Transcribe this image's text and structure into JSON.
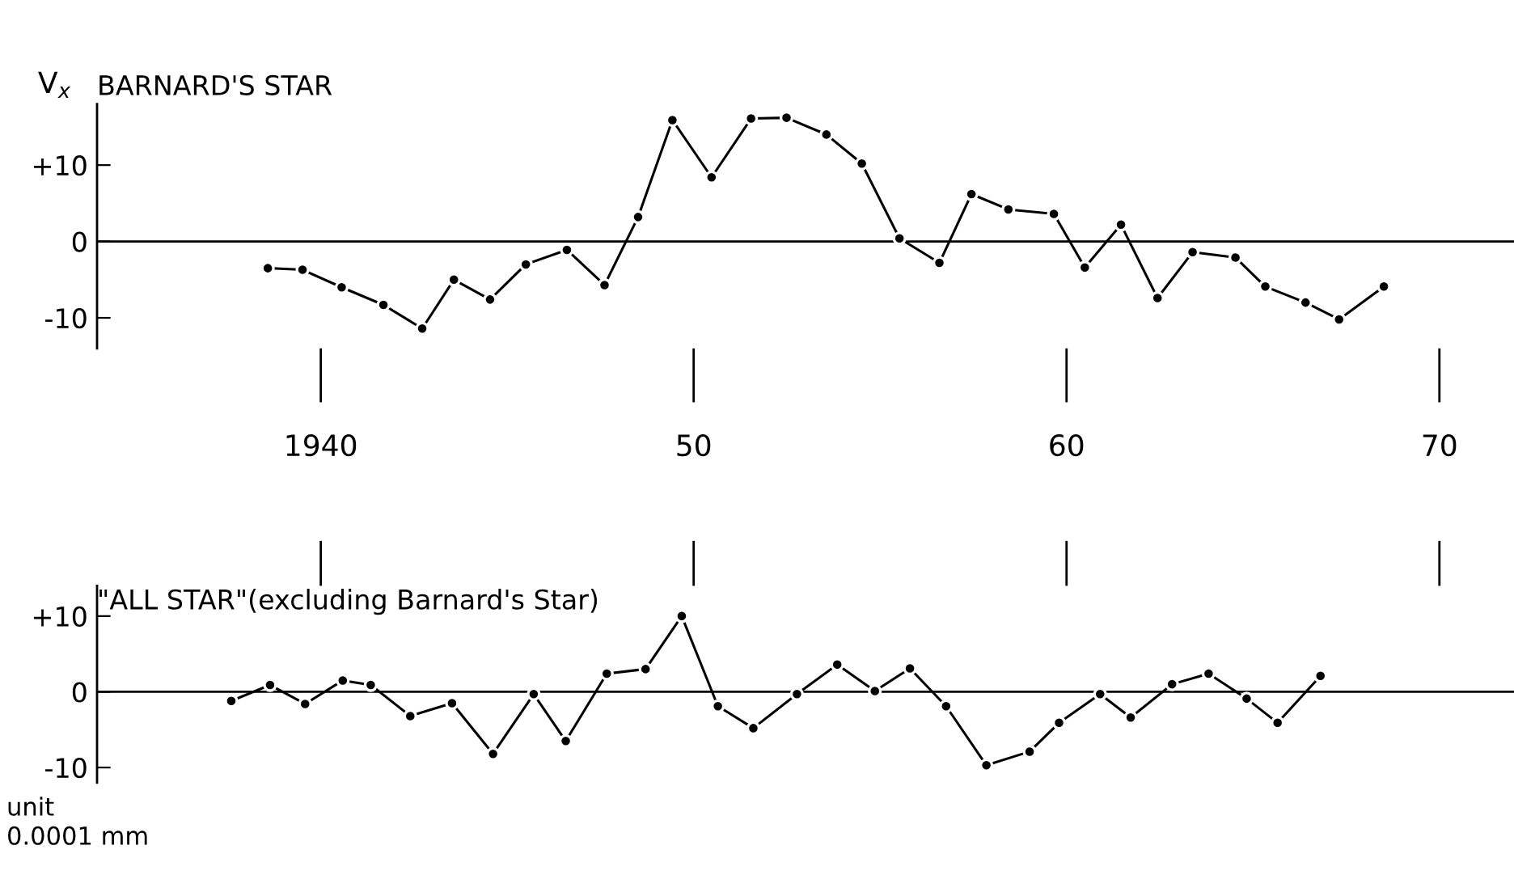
{
  "chart_data": [
    {
      "type": "line",
      "title": "BARNARD'S STAR",
      "ylabel": "V$_{x}$",
      "marker": "circle",
      "line_style": "solid",
      "grid": false,
      "legend": false,
      "x": [
        1938.58,
        1939.51,
        1940.56,
        1941.68,
        1942.72,
        1943.57,
        1944.54,
        1945.5,
        1946.6,
        1947.61,
        1948.51,
        1949.43,
        1950.48,
        1951.54,
        1952.49,
        1953.56,
        1954.51,
        1955.52,
        1956.59,
        1957.45,
        1958.44,
        1959.66,
        1960.49,
        1961.46,
        1962.44,
        1963.38,
        1964.53,
        1965.33,
        1966.41,
        1967.31,
        1968.51
      ],
      "series": [
        {
          "color": "#000000",
          "values": [
            -3.5,
            -3.7,
            -6.0,
            -8.3,
            -11.4,
            -5.0,
            -7.6,
            -3.0,
            -1.1,
            -5.7,
            3.2,
            15.9,
            8.4,
            16.1,
            16.2,
            14.0,
            10.2,
            0.4,
            -2.8,
            6.2,
            4.2,
            3.6,
            -3.4,
            2.2,
            -7.4,
            -1.4,
            -2.1,
            -5.9,
            -8.0,
            -10.2,
            -5.9
          ]
        }
      ],
      "xlim": [
        1934,
        1972
      ],
      "xticks": [
        {
          "value": 1940,
          "label": "1940"
        },
        {
          "value": 1950,
          "label": "50"
        },
        {
          "value": 1960,
          "label": "60"
        },
        {
          "value": 1970,
          "label": "70"
        }
      ],
      "ylim": [
        -14,
        18
      ],
      "yticks": [
        {
          "value": 10,
          "label": "+10"
        },
        0,
        -10
      ],
      "ref_lines": [
        {
          "axis": "y",
          "value": 0,
          "color": "#000000"
        }
      ]
    },
    {
      "type": "line",
      "title": "\"ALL STAR\"(excluding Barnard's Star)",
      "marker": "circle",
      "line_style": "solid",
      "grid": false,
      "legend": false,
      "tick_labels": "y",
      "x": [
        1937.6,
        1938.64,
        1939.58,
        1940.59,
        1941.34,
        1942.4,
        1943.52,
        1944.62,
        1945.71,
        1946.57,
        1947.67,
        1948.71,
        1949.68,
        1950.65,
        1951.6,
        1952.77,
        1953.85,
        1954.86,
        1955.8,
        1956.77,
        1957.85,
        1959.01,
        1959.8,
        1960.9,
        1961.72,
        1962.83,
        1963.81,
        1964.83,
        1965.66,
        1966.81
      ],
      "series": [
        {
          "color": "#000000",
          "values": [
            -1.2,
            0.9,
            -1.6,
            1.5,
            0.9,
            -3.2,
            -1.5,
            -8.2,
            -0.3,
            -6.5,
            2.4,
            3.0,
            10.0,
            -1.9,
            -4.8,
            -0.3,
            3.6,
            0.1,
            3.1,
            -1.9,
            -9.7,
            -7.9,
            -4.1,
            -0.3,
            -3.4,
            1.0,
            2.4,
            -0.9,
            -4.1,
            2.1
          ]
        }
      ],
      "xlim": [
        1934,
        1972
      ],
      "xticks": [
        {
          "value": 1940,
          "label": null
        },
        {
          "value": 1950,
          "label": null
        },
        {
          "value": 1960,
          "label": null
        },
        {
          "value": 1970,
          "label": null
        }
      ],
      "ylim": [
        -12,
        14
      ],
      "yticks": [
        {
          "value": 10,
          "label": "+10"
        },
        0,
        -10
      ],
      "ref_lines": [
        {
          "axis": "y",
          "value": 0,
          "color": "#000000"
        }
      ],
      "annotations": [
        "unit",
        "0.0001 mm"
      ]
    }
  ]
}
